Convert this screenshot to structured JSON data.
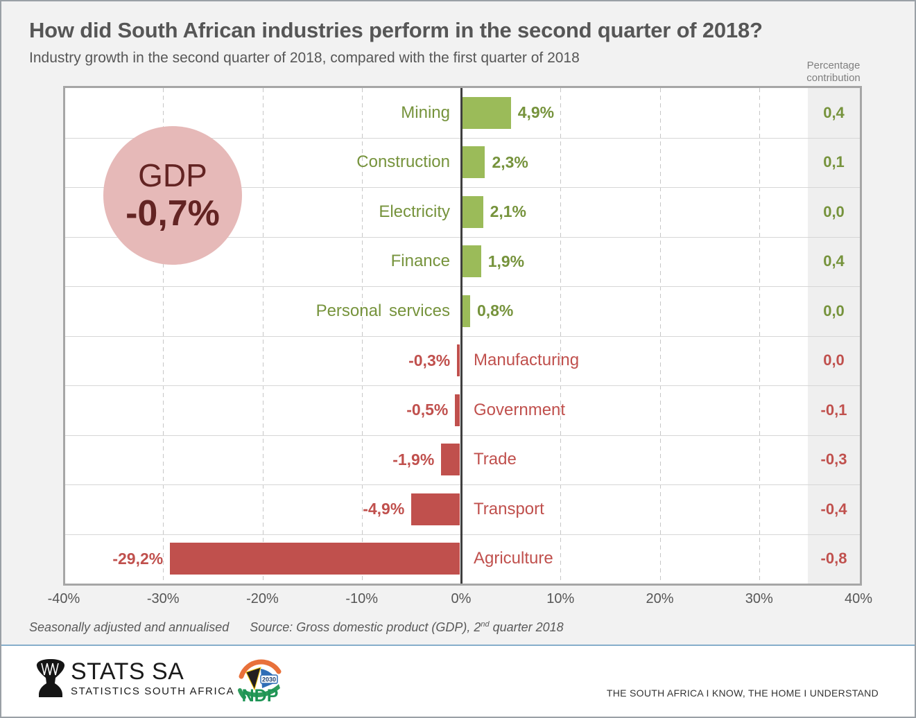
{
  "header": {
    "title": "How did South African industries perform in the second quarter of 2018?",
    "subtitle": "Industry growth in the second quarter of 2018, compared with the first quarter of 2018",
    "contribution_label": "Percentage contribution"
  },
  "gdp_badge": {
    "label": "GDP",
    "value": "-0,7%"
  },
  "chart_data": {
    "type": "bar",
    "orientation": "horizontal",
    "title": "Industry growth in the second quarter of 2018, compared with the first quarter of 2018",
    "categories": [
      "Mining",
      "Construction",
      "Electricity",
      "Finance",
      "Personal services",
      "Manufacturing",
      "Government",
      "Trade",
      "Transport",
      "Agriculture"
    ],
    "values": [
      4.9,
      2.3,
      2.1,
      1.9,
      0.8,
      -0.3,
      -0.5,
      -1.9,
      -4.9,
      -29.2
    ],
    "value_labels": [
      "4,9%",
      "2,3%",
      "2,1%",
      "1,9%",
      "0,8%",
      "-0,3%",
      "-0,5%",
      "-1,9%",
      "-4,9%",
      "-29,2%"
    ],
    "contributions": [
      "0,4",
      "0,1",
      "0,0",
      "0,4",
      "0,0",
      "0,0",
      "-0,1",
      "-0,3",
      "-0,4",
      "-0,8"
    ],
    "contribution_column_label": "Percentage contribution",
    "xlim": [
      -40,
      40
    ],
    "x_tick_values": [
      -40,
      -30,
      -20,
      -10,
      0,
      10,
      20,
      30,
      40
    ],
    "x_tick_labels": [
      "-40%",
      "-30%",
      "-20%",
      "-10%",
      "0%",
      "10%",
      "20%",
      "30%",
      "40%"
    ],
    "grid": true,
    "legend": "none",
    "positive_color": "#9BBB59",
    "negative_color": "#C0504D",
    "positive_text_color": "#76933C",
    "negative_text_color": "#C0504D",
    "gdp_annotation": {
      "label": "GDP",
      "value": "-0,7%",
      "fill": "#E6B9B8",
      "text_color": "#632423"
    }
  },
  "footnote": {
    "note": "Seasonally adjusted and annualised",
    "source_prefix": "Source: Gross domestic product (GDP), 2",
    "source_sup": "nd",
    "source_suffix": " quarter 2018"
  },
  "footer": {
    "statssa_name": "STATS SA",
    "statssa_sub": "STATISTICS SOUTH AFRICA",
    "ndp_label": "NDP",
    "ndp_year": "2030",
    "slogan": "THE SOUTH AFRICA I KNOW, THE HOME I UNDERSTAND"
  }
}
